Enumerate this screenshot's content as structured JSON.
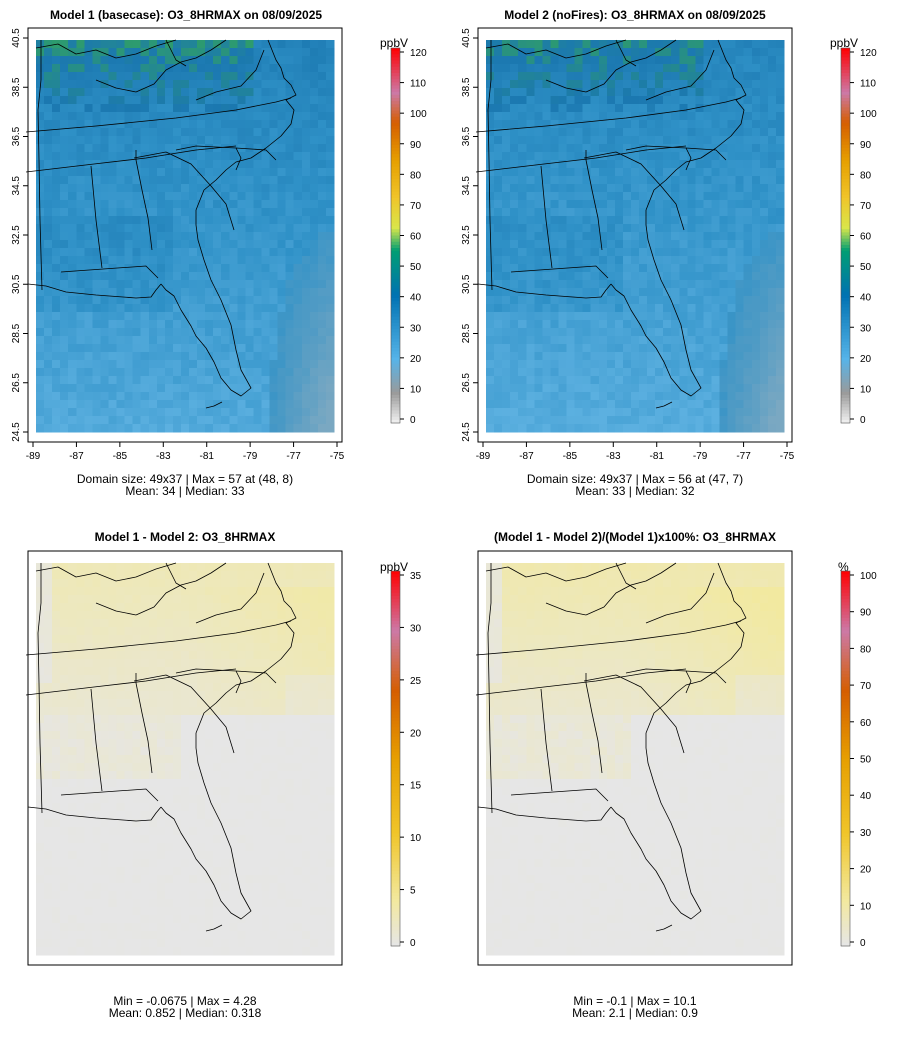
{
  "panels": [
    {
      "title": "Model 1 (basecase): O3_8HRMAX on 08/09/2025",
      "unit": "ppbV",
      "scale_max": 120,
      "scale_ticks": [
        "0",
        "10",
        "20",
        "30",
        "40",
        "50",
        "60",
        "70",
        "80",
        "90",
        "100",
        "110",
        "120"
      ],
      "footer_line1": "Domain size: 49x37 | Max = 57 at (48, 8)",
      "footer_line2": "Mean: 34 |  Median: 33",
      "palette": "ozone",
      "field_mean": 34
    },
    {
      "title": "Model 2 (noFires): O3_8HRMAX on 08/09/2025",
      "unit": "ppbV",
      "scale_max": 120,
      "scale_ticks": [
        "0",
        "10",
        "20",
        "30",
        "40",
        "50",
        "60",
        "70",
        "80",
        "90",
        "100",
        "110",
        "120"
      ],
      "footer_line1": "Domain size: 49x37 | Max = 56 at (47, 7)",
      "footer_line2": "Mean: 33 |  Median: 32",
      "palette": "ozone",
      "field_mean": 33
    },
    {
      "title": "Model 1 - Model 2: O3_8HRMAX",
      "unit": "ppbV",
      "scale_max": 35,
      "scale_ticks": [
        "0",
        "5",
        "10",
        "15",
        "20",
        "25",
        "30",
        "35"
      ],
      "footer_line1": "Min = -0.0675 | Max = 4.28",
      "footer_line2": "Mean: 0.852 |  Median: 0.318",
      "palette": "diff"
    },
    {
      "title": "(Model 1 - Model 2)/(Model 1)x100%: O3_8HRMAX",
      "unit": "%",
      "scale_max": 100,
      "scale_ticks": [
        "0",
        "10",
        "20",
        "30",
        "40",
        "50",
        "60",
        "70",
        "80",
        "90",
        "100"
      ],
      "footer_line1": "Min = -0.1 | Max = 10.1",
      "footer_line2": "Mean: 2.1 |  Median: 0.9",
      "palette": "diff"
    }
  ],
  "lat_ticks": [
    "24.5",
    "26.5",
    "28.5",
    "30.5",
    "32.5",
    "34.5",
    "36.5",
    "38.5",
    "40.5"
  ],
  "lon_ticks": [
    "-89",
    "-87",
    "-85",
    "-83",
    "-81",
    "-79",
    "-77",
    "-75"
  ],
  "colors": {
    "ozone_low": "#2f91c7",
    "ozone_mid": "#1b78b0",
    "ozone_high": "#2d9b6e",
    "ocean_clean": "#7aa8c2",
    "diff_background": "#e6e6e6",
    "diff_yellow": "#f2e9a0"
  }
}
